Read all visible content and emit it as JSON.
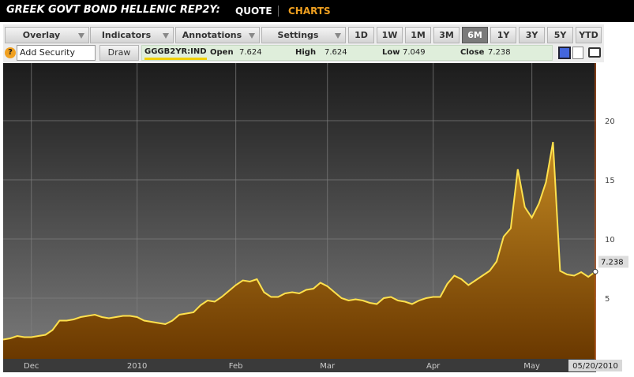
{
  "header": {
    "title": "GREEK GOVT BOND HELLENIC REP2Y:",
    "tabs": [
      "QUOTE",
      "CHARTS"
    ],
    "active_tab": 1
  },
  "toolbar": {
    "menus": [
      "Overlay",
      "Indicators",
      "Annotations",
      "Settings"
    ],
    "periods": [
      "1D",
      "1W",
      "1M",
      "3M",
      "6M",
      "1Y",
      "3Y",
      "5Y",
      "YTD"
    ],
    "active_period": 4
  },
  "security_bar": {
    "help": "?",
    "input_placeholder": "Add Security",
    "button": "Draw",
    "ticker": "GGGB2YR:IND",
    "fields": [
      {
        "label": "Open",
        "value": 7.624
      },
      {
        "label": "High",
        "value": 7.624
      },
      {
        "label": "Low",
        "value": 7.049
      },
      {
        "label": "Close",
        "value": 7.238
      }
    ]
  },
  "chart_data": {
    "type": "area",
    "color": "#ffe14d",
    "fill": "#a8701a",
    "categories": [
      null,
      null,
      null,
      null,
      "Dec",
      null,
      null,
      null,
      null,
      null,
      null,
      null,
      null,
      null,
      null,
      null,
      null,
      null,
      null,
      "2010",
      null,
      null,
      null,
      null,
      null,
      null,
      null,
      null,
      null,
      null,
      null,
      null,
      null,
      "Feb",
      null,
      null,
      null,
      null,
      null,
      null,
      null,
      null,
      null,
      null,
      null,
      null,
      "Mar",
      null,
      null,
      null,
      null,
      null,
      null,
      null,
      null,
      null,
      null,
      null,
      null,
      null,
      null,
      "Apr",
      null,
      null,
      null,
      null,
      null,
      null,
      null,
      null,
      null,
      null,
      null,
      null,
      null,
      "May",
      null,
      null,
      null,
      null,
      null,
      null,
      null,
      null,
      null
    ],
    "values": [
      1.5,
      1.6,
      1.8,
      1.7,
      1.7,
      1.8,
      1.9,
      2.3,
      3.1,
      3.1,
      3.2,
      3.4,
      3.5,
      3.6,
      3.4,
      3.3,
      3.4,
      3.5,
      3.5,
      3.4,
      3.1,
      3.0,
      2.9,
      2.8,
      3.1,
      3.6,
      3.7,
      3.8,
      4.4,
      4.8,
      4.7,
      5.1,
      5.6,
      6.1,
      6.5,
      6.4,
      6.6,
      5.5,
      5.1,
      5.1,
      5.4,
      5.5,
      5.4,
      5.7,
      5.8,
      6.3,
      6.0,
      5.5,
      5.0,
      4.8,
      4.9,
      4.8,
      4.6,
      4.5,
      5.0,
      5.1,
      4.8,
      4.7,
      4.5,
      4.8,
      5.0,
      5.1,
      5.1,
      6.2,
      6.9,
      6.6,
      6.1,
      6.5,
      6.9,
      7.3,
      8.1,
      10.2,
      10.9,
      15.9,
      12.7,
      11.8,
      13.0,
      14.8,
      18.2,
      7.3,
      7.0,
      6.9,
      7.2,
      6.8,
      7.238
    ],
    "ylim": [
      0,
      25
    ],
    "yticks": [
      5,
      10,
      15,
      20
    ],
    "grid": true,
    "end_date_label": "05/20/2010"
  }
}
